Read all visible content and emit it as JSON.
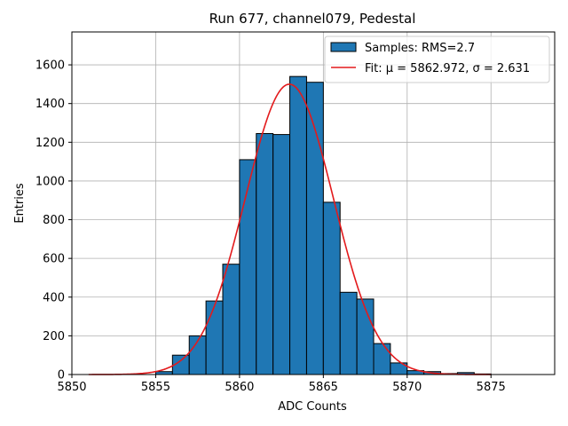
{
  "chart_data": {
    "type": "bar",
    "title": "Run 677, channel079, Pedestal",
    "xlabel": "ADC Counts",
    "ylabel": "Entries",
    "xlim": [
      5850,
      5878.8
    ],
    "ylim": [
      0,
      1770
    ],
    "xticks": [
      5850,
      5855,
      5860,
      5865,
      5870,
      5875
    ],
    "yticks": [
      0,
      200,
      400,
      600,
      800,
      1000,
      1200,
      1400,
      1600
    ],
    "grid": true,
    "legend_position": "top-right",
    "bin_width": 1,
    "bins": [
      {
        "x": 5855,
        "value": 15
      },
      {
        "x": 5856,
        "value": 100
      },
      {
        "x": 5857,
        "value": 200
      },
      {
        "x": 5858,
        "value": 380
      },
      {
        "x": 5859,
        "value": 570
      },
      {
        "x": 5860,
        "value": 1110
      },
      {
        "x": 5861,
        "value": 1245
      },
      {
        "x": 5862,
        "value": 1240
      },
      {
        "x": 5863,
        "value": 1540
      },
      {
        "x": 5864,
        "value": 1510
      },
      {
        "x": 5865,
        "value": 890
      },
      {
        "x": 5866,
        "value": 425
      },
      {
        "x": 5867,
        "value": 390
      },
      {
        "x": 5868,
        "value": 160
      },
      {
        "x": 5869,
        "value": 60
      },
      {
        "x": 5870,
        "value": 20
      },
      {
        "x": 5871,
        "value": 15
      },
      {
        "x": 5872,
        "value": 5
      },
      {
        "x": 5873,
        "value": 10
      },
      {
        "x": 5874,
        "value": 3
      }
    ],
    "fit": {
      "mu": 5862.972,
      "sigma": 2.631,
      "amplitude": 1500,
      "x_range": [
        5851,
        5875
      ]
    },
    "series": [
      {
        "name": "Samples: RMS=2.7",
        "color": "#1f77b4",
        "kind": "histogram"
      },
      {
        "name": "Fit: μ = 5862.972, σ = 2.631",
        "color": "#e31a1c",
        "kind": "line"
      }
    ]
  }
}
